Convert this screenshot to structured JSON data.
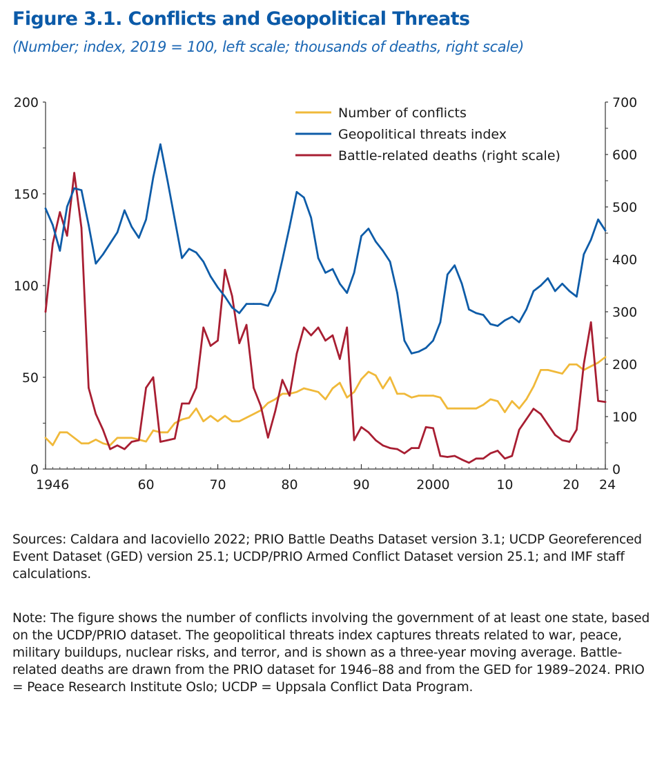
{
  "title": "Figure 3.1.  Conflicts and Geopolitical Threats",
  "subtitle": "(Number; index, 2019 = 100, left scale; thousands of deaths, right scale)",
  "sources": "Sources: Caldara and Iacoviello 2022; PRIO Battle Deaths Dataset version 3.1; UCDP Georeferenced Event Dataset (GED) version 25.1; UCDP/PRIO Armed Conflict Dataset version 25.1; and IMF staff calculations.",
  "note": "Note: The figure shows the number of conflicts involving the government of at least one state, based on the UCDP/PRIO dataset. The geopolitical threats index captures threats related to war, peace, military buildups, nuclear risks, and terror, and is shown as a three-year moving average. Battle-related deaths are drawn from the PRIO dataset for 1946–88 and from the GED for 1989–2024. PRIO = Peace Research Institute Oslo; UCDP = Uppsala Conflict Data Program.",
  "chart_data": {
    "type": "line",
    "x_start": 1946,
    "x_end": 2024,
    "left_axis": {
      "min": 0,
      "max": 200,
      "ticks": [
        0,
        50,
        100,
        150,
        200
      ],
      "labels": [
        "0",
        "50",
        "100",
        "150",
        "200"
      ]
    },
    "right_axis": {
      "min": 0,
      "max": 700,
      "ticks": [
        0,
        100,
        200,
        300,
        400,
        500,
        600,
        700
      ],
      "labels": [
        "0",
        "100",
        "200",
        "300",
        "400",
        "500",
        "600",
        "700"
      ]
    },
    "x_ticks": [
      {
        "year": 1946,
        "label": "1946"
      },
      {
        "year": 1960,
        "label": "60"
      },
      {
        "year": 1970,
        "label": "70"
      },
      {
        "year": 1980,
        "label": "80"
      },
      {
        "year": 1990,
        "label": "90"
      },
      {
        "year": 2000,
        "label": "2000"
      },
      {
        "year": 2010,
        "label": "10"
      },
      {
        "year": 2020,
        "label": "20"
      },
      {
        "year": 2024,
        "label": "24"
      }
    ],
    "grid": false,
    "legend_position": "top-right",
    "series": [
      {
        "name": "Number of conflicts",
        "axis": "left",
        "color": "#f0b93a",
        "x": [
          1946,
          1947,
          1948,
          1949,
          1950,
          1951,
          1952,
          1953,
          1954,
          1955,
          1956,
          1957,
          1958,
          1959,
          1960,
          1961,
          1962,
          1963,
          1964,
          1965,
          1966,
          1967,
          1968,
          1969,
          1970,
          1971,
          1972,
          1973,
          1974,
          1975,
          1976,
          1977,
          1978,
          1979,
          1980,
          1981,
          1982,
          1983,
          1984,
          1985,
          1986,
          1987,
          1988,
          1989,
          1990,
          1991,
          1992,
          1993,
          1994,
          1995,
          1996,
          1997,
          1998,
          1999,
          2000,
          2001,
          2002,
          2003,
          2004,
          2005,
          2006,
          2007,
          2008,
          2009,
          2010,
          2011,
          2012,
          2013,
          2014,
          2015,
          2016,
          2017,
          2018,
          2019,
          2020,
          2021,
          2022,
          2023,
          2024
        ],
        "values": [
          17,
          13,
          20,
          20,
          17,
          14,
          14,
          16,
          14,
          13,
          17,
          17,
          17,
          16,
          15,
          21,
          20,
          20,
          25,
          27,
          28,
          33,
          26,
          29,
          26,
          29,
          26,
          26,
          28,
          30,
          32,
          36,
          38,
          41,
          41,
          42,
          44,
          43,
          42,
          38,
          44,
          47,
          39,
          42,
          49,
          53,
          51,
          44,
          50,
          41,
          41,
          39,
          40,
          40,
          40,
          39,
          33,
          33,
          33,
          33,
          33,
          35,
          38,
          37,
          31,
          37,
          33,
          38,
          45,
          54,
          54,
          53,
          52,
          57,
          57,
          54,
          56,
          58,
          61
        ]
      },
      {
        "name": "Geopolitical threats index",
        "axis": "left",
        "color": "#0e5ca8",
        "x": [
          1946,
          1947,
          1948,
          1949,
          1950,
          1951,
          1952,
          1953,
          1954,
          1955,
          1956,
          1957,
          1958,
          1959,
          1960,
          1961,
          1962,
          1963,
          1964,
          1965,
          1966,
          1967,
          1968,
          1969,
          1970,
          1971,
          1972,
          1973,
          1974,
          1975,
          1976,
          1977,
          1978,
          1979,
          1980,
          1981,
          1982,
          1983,
          1984,
          1985,
          1986,
          1987,
          1988,
          1989,
          1990,
          1991,
          1992,
          1993,
          1994,
          1995,
          1996,
          1997,
          1998,
          1999,
          2000,
          2001,
          2002,
          2003,
          2004,
          2005,
          2006,
          2007,
          2008,
          2009,
          2010,
          2011,
          2012,
          2013,
          2014,
          2015,
          2016,
          2017,
          2018,
          2019,
          2020,
          2021,
          2022,
          2023,
          2024
        ],
        "values": [
          142,
          133,
          119,
          143,
          153,
          152,
          133,
          112,
          117,
          123,
          129,
          141,
          132,
          126,
          136,
          159,
          177,
          157,
          136,
          115,
          120,
          118,
          113,
          105,
          99,
          94,
          88,
          85,
          90,
          90,
          90,
          89,
          97,
          114,
          132,
          151,
          148,
          137,
          115,
          107,
          109,
          101,
          96,
          107,
          127,
          131,
          124,
          119,
          113,
          96,
          70,
          63,
          64,
          66,
          70,
          80,
          106,
          111,
          101,
          87,
          85,
          84,
          79,
          78,
          81,
          83,
          80,
          87,
          97,
          100,
          104,
          97,
          101,
          97,
          94,
          117,
          125,
          136,
          130
        ]
      },
      {
        "name": "Battle-related deaths (right scale)",
        "axis": "right",
        "color": "#a81e32",
        "x": [
          1946,
          1947,
          1948,
          1949,
          1950,
          1951,
          1952,
          1953,
          1954,
          1955,
          1956,
          1957,
          1958,
          1959,
          1960,
          1961,
          1962,
          1963,
          1964,
          1965,
          1966,
          1967,
          1968,
          1969,
          1970,
          1971,
          1972,
          1973,
          1974,
          1975,
          1976,
          1977,
          1978,
          1979,
          1980,
          1981,
          1982,
          1983,
          1984,
          1985,
          1986,
          1987,
          1988,
          1989,
          1990,
          1991,
          1992,
          1993,
          1994,
          1995,
          1996,
          1997,
          1998,
          1999,
          2000,
          2001,
          2002,
          2003,
          2004,
          2005,
          2006,
          2007,
          2008,
          2009,
          2010,
          2011,
          2012,
          2013,
          2014,
          2015,
          2016,
          2017,
          2018,
          2019,
          2020,
          2021,
          2022,
          2023,
          2024
        ],
        "values": [
          300,
          430,
          490,
          445,
          565,
          460,
          155,
          105,
          75,
          38,
          45,
          38,
          52,
          55,
          155,
          175,
          52,
          55,
          58,
          125,
          125,
          155,
          270,
          235,
          245,
          380,
          330,
          240,
          275,
          155,
          120,
          60,
          110,
          170,
          140,
          220,
          270,
          255,
          270,
          245,
          255,
          210,
          270,
          55,
          80,
          70,
          55,
          45,
          40,
          38,
          30,
          40,
          40,
          80,
          78,
          25,
          23,
          25,
          18,
          12,
          20,
          20,
          30,
          35,
          20,
          25,
          75,
          95,
          115,
          105,
          85,
          65,
          55,
          52,
          75,
          200,
          280,
          130,
          128
        ]
      }
    ]
  }
}
